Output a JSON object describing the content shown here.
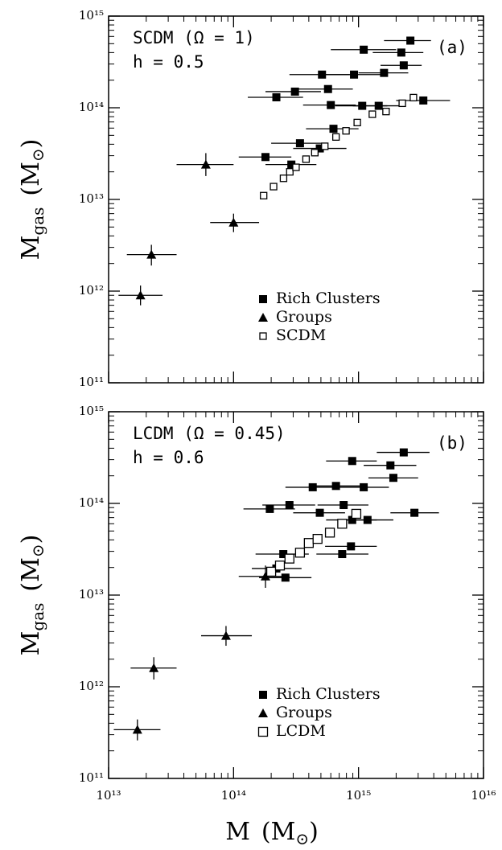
{
  "chart_data": [
    {
      "type": "scatter",
      "log_x": true,
      "log_y": true,
      "annotations": [
        "SCDM (Ω = 1)",
        "h = 0.5",
        "(a)"
      ],
      "ylabel": [
        "M",
        "gas",
        "(M",
        "⊙",
        ")"
      ],
      "xlim": [
        10000000000000.0,
        1e+16
      ],
      "xticks": [
        10000000000000.0,
        100000000000000.0,
        1000000000000000.0,
        1e+16
      ],
      "ylim": [
        100000000000.0,
        1000000000000000.0
      ],
      "yticks": [
        {
          "value": 100000000000.0,
          "label": "10¹¹"
        },
        {
          "value": 1000000000000.0,
          "label": "10¹²"
        },
        {
          "value": 10000000000000.0,
          "label": "10¹³"
        },
        {
          "value": 100000000000000.0,
          "label": "10¹⁴"
        },
        {
          "value": 1000000000000000.0,
          "label": "10¹⁵"
        }
      ],
      "legend": "lower right",
      "series": [
        {
          "name": "Rich Clusters",
          "marker": "square",
          "color": "#000000",
          "x": [
            2600000000000000.0,
            1100000000000000.0,
            2200000000000000.0,
            2300000000000000.0,
            510000000000000.0,
            920000000000000.0,
            1600000000000000.0,
            310000000000000.0,
            570000000000000.0,
            220000000000000.0,
            600000000000000.0,
            1070000000000000.0,
            1450000000000000.0,
            3300000000000000.0,
            340000000000000.0,
            180000000000000.0,
            630000000000000.0,
            490000000000000.0,
            290000000000000.0
          ],
          "values": [
            540000000000000.0,
            430000000000000.0,
            400000000000000.0,
            290000000000000.0,
            230000000000000.0,
            230000000000000.0,
            240000000000000.0,
            150000000000000.0,
            160000000000000.0,
            130000000000000.0,
            107000000000000.0,
            105000000000000.0,
            105000000000000.0,
            120000000000000.0,
            41000000000000.0,
            29000000000000.0,
            59000000000000.0,
            36000000000000.0,
            24000000000000.0
          ],
          "xlo": [
            1600000000000000.0,
            600000000000000.0,
            1300000000000000.0,
            1500000000000000.0,
            280000000000000.0,
            500000000000000.0,
            1000000000000000.0,
            180000000000000.0,
            330000000000000.0,
            130000000000000.0,
            360000000000000.0,
            650000000000000.0,
            900000000000000.0,
            2000000000000000.0,
            200000000000000.0,
            110000000000000.0,
            380000000000000.0,
            300000000000000.0,
            180000000000000.0
          ],
          "xhi": [
            3800000000000000.0,
            2000000000000000.0,
            3300000000000000.0,
            3200000000000000.0,
            850000000000000.0,
            1500000000000000.0,
            2500000000000000.0,
            500000000000000.0,
            900000000000000.0,
            360000000000000.0,
            950000000000000.0,
            1700000000000000.0,
            2300000000000000.0,
            5400000000000000.0,
            550000000000000.0,
            290000000000000.0,
            1000000000000000.0,
            800000000000000.0,
            460000000000000.0
          ]
        },
        {
          "name": "Groups",
          "marker": "triangle",
          "color": "#000000",
          "x": [
            60000000000000.0,
            100000000000000.0,
            22000000000000.0,
            18000000000000.0
          ],
          "values": [
            24000000000000.0,
            5600000000000.0,
            2500000000000.0,
            900000000000.0
          ],
          "xlo": [
            35000000000000.0,
            65000000000000.0,
            14000000000000.0,
            12000000000000.0
          ],
          "xhi": [
            100000000000000.0,
            160000000000000.0,
            35000000000000.0,
            27000000000000.0
          ],
          "ylo": [
            18000000000000.0,
            4400000000000.0,
            1900000000000.0,
            700000000000.0
          ],
          "yhi": [
            32000000000000.0,
            7000000000000.0,
            3200000000000.0,
            1150000000000.0
          ]
        },
        {
          "name": "SCDM",
          "marker": "open-square",
          "color": "#000000",
          "x": [
            174000000000000.0,
            209000000000000.0,
            251000000000000.0,
            282000000000000.0,
            316000000000000.0,
            380000000000000.0,
            447000000000000.0,
            537000000000000.0,
            660000000000000.0,
            794000000000000.0,
            977000000000000.0,
            1290000000000000.0,
            1660000000000000.0,
            2240000000000000.0,
            2750000000000000.0
          ],
          "values": [
            11000000000000.0,
            13800000000000.0,
            17000000000000.0,
            20000000000000.0,
            22400000000000.0,
            27500000000000.0,
            32400000000000.0,
            38000000000000.0,
            48000000000000.0,
            56000000000000.0,
            69000000000000.0,
            85000000000000.0,
            91000000000000.0,
            112000000000000.0,
            129000000000000.0
          ]
        }
      ]
    },
    {
      "type": "scatter",
      "log_x": true,
      "log_y": true,
      "annotations": [
        "LCDM (Ω = 0.45)",
        "h = 0.6",
        "(b)"
      ],
      "ylabel": [
        "M",
        "gas",
        "(M",
        "⊙",
        ")"
      ],
      "xlabel": [
        "M",
        "(M",
        "⊙",
        ")"
      ],
      "xlim": [
        10000000000000.0,
        1e+16
      ],
      "xticks": [
        {
          "value": 10000000000000.0,
          "label": "10¹³"
        },
        {
          "value": 100000000000000.0,
          "label": "10¹⁴"
        },
        {
          "value": 1000000000000000.0,
          "label": "10¹⁵"
        },
        {
          "value": 1e+16,
          "label": "10¹⁶"
        }
      ],
      "ylim": [
        100000000000.0,
        1000000000000000.0
      ],
      "yticks": [
        {
          "value": 100000000000.0,
          "label": "10¹¹"
        },
        {
          "value": 1000000000000.0,
          "label": "10¹²"
        },
        {
          "value": 10000000000000.0,
          "label": "10¹³"
        },
        {
          "value": 100000000000000.0,
          "label": "10¹⁴"
        },
        {
          "value": 1000000000000000.0,
          "label": "10¹⁵"
        }
      ],
      "legend": "lower right",
      "series": [
        {
          "name": "Rich Clusters",
          "marker": "square",
          "color": "#000000",
          "x": [
            2300000000000000.0,
            890000000000000.0,
            1800000000000000.0,
            1900000000000000.0,
            660000000000000.0,
            1100000000000000.0,
            430000000000000.0,
            2800000000000000.0,
            280000000000000.0,
            760000000000000.0,
            195000000000000.0,
            490000000000000.0,
            1180000000000000.0,
            890000000000000.0,
            870000000000000.0,
            740000000000000.0,
            250000000000000.0,
            220000000000000.0,
            260000000000000.0
          ],
          "values": [
            360000000000000.0,
            290000000000000.0,
            260000000000000.0,
            190000000000000.0,
            155000000000000.0,
            150000000000000.0,
            150000000000000.0,
            79000000000000.0,
            96000000000000.0,
            96000000000000.0,
            87000000000000.0,
            79000000000000.0,
            66000000000000.0,
            66000000000000.0,
            34000000000000.0,
            28000000000000.0,
            28000000000000.0,
            19500000000000.0,
            15500000000000.0
          ],
          "xlo": [
            1400000000000000.0,
            550000000000000.0,
            1100000000000000.0,
            1200000000000000.0,
            400000000000000.0,
            700000000000000.0,
            260000000000000.0,
            1800000000000000.0,
            170000000000000.0,
            470000000000000.0,
            120000000000000.0,
            300000000000000.0,
            750000000000000.0,
            550000000000000.0,
            540000000000000.0,
            460000000000000.0,
            150000000000000.0,
            140000000000000.0,
            160000000000000.0
          ],
          "xhi": [
            3700000000000000.0,
            1400000000000000.0,
            2900000000000000.0,
            3000000000000000.0,
            1050000000000000.0,
            1750000000000000.0,
            700000000000000.0,
            4400000000000000.0,
            450000000000000.0,
            1200000000000000.0,
            310000000000000.0,
            780000000000000.0,
            1900000000000000.0,
            1400000000000000.0,
            1400000000000000.0,
            1200000000000000.0,
            400000000000000.0,
            350000000000000.0,
            420000000000000.0
          ]
        },
        {
          "name": "Groups",
          "marker": "triangle",
          "color": "#000000",
          "x": [
            17000000000000.0,
            23000000000000.0,
            87000000000000.0,
            180000000000000.0
          ],
          "values": [
            340000000000.0,
            1600000000000.0,
            3600000000000.0,
            16000000000000.0
          ],
          "xlo": [
            11000000000000.0,
            15000000000000.0,
            55000000000000.0,
            110000000000000.0
          ],
          "xhi": [
            26000000000000.0,
            35000000000000.0,
            140000000000000.0,
            280000000000000.0
          ],
          "ylo": [
            260000000000.0,
            1200000000000.0,
            2800000000000.0,
            12000000000000.0
          ],
          "yhi": [
            440000000000.0,
            2100000000000.0,
            4600000000000.0,
            21000000000000.0
          ]
        },
        {
          "name": "LCDM",
          "marker": "open-square-large",
          "color": "#000000",
          "x": [
            200000000000000.0,
            235000000000000.0,
            280000000000000.0,
            340000000000000.0,
            400000000000000.0,
            470000000000000.0,
            590000000000000.0,
            740000000000000.0,
            960000000000000.0
          ],
          "values": [
            18000000000000.0,
            21000000000000.0,
            25000000000000.0,
            29000000000000.0,
            37000000000000.0,
            41000000000000.0,
            48000000000000.0,
            60000000000000.0,
            77000000000000.0
          ]
        }
      ]
    }
  ]
}
